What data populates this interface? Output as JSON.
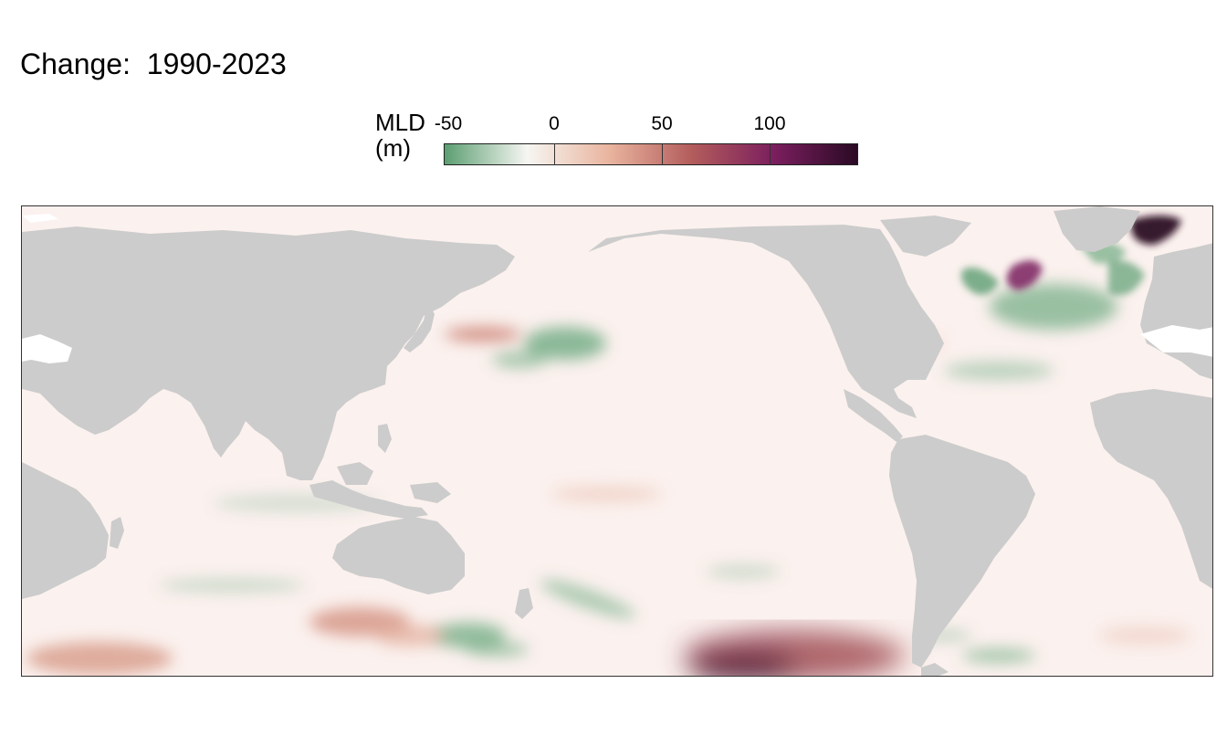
{
  "title": "Change:  1990-2023",
  "legend": {
    "title_line1": "MLD",
    "title_line2": "(m)",
    "ticks": [
      "-50",
      "0",
      "50",
      "100"
    ],
    "tick_values": [
      -50,
      0,
      50,
      100
    ],
    "range": [
      -50,
      140
    ],
    "colors": [
      "#5c9e72",
      "#f6f6f2",
      "#e9b49e",
      "#b35c5c",
      "#7a1e5e",
      "#2a0a24"
    ]
  },
  "map": {
    "land_color": "#cccccc",
    "ocean_neutral_color": "#fbf1ee"
  }
}
